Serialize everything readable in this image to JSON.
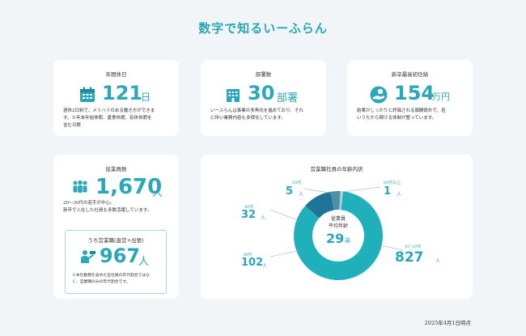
{
  "page": {
    "title": "数字で知るいーふらん",
    "date": "2025年4月1日時点"
  },
  "holidays": {
    "title": "年間休日",
    "value": "121",
    "unit": "日",
    "desc": [
      "週休2日制で、メリハリのある働き方ができま",
      "す。※年末年始休暇、夏季休暇、有休休暇を",
      "含む日数"
    ]
  },
  "departments": {
    "title": "部署数",
    "value": "30",
    "unit": "部署",
    "desc": [
      "いーふらんは事業の多角化を進めており、それ",
      "に伴い業務内容も多様化しています。"
    ]
  },
  "salary": {
    "title": "新卒最高初任給",
    "value": "154",
    "unit": "万円",
    "desc": [
      "結果がしっかりと評価される報酬設計で、若",
      "いうちから稼げる体制が整っています。"
    ]
  },
  "employees": {
    "title": "従業員数",
    "value": "1,670",
    "unit": "人",
    "desc": [
      "20～30代の若手が中心。",
      "新卒で入社した社員も多数活躍しています。"
    ],
    "sales": {
      "title": "うち営業職(直営+出張)",
      "value": "967",
      "unit": "人",
      "note": [
        "※本社勤務を含めた全社員の年代割合ではな",
        "く、営業職のみの年代割合です。"
      ]
    }
  },
  "ages": {
    "title": "営業職社員の年齢内訳",
    "center": {
      "line1": "従業員",
      "line2": "平均年齢",
      "value": "29",
      "unit": "歳"
    },
    "legend": {
      "a50": {
        "label": "50代",
        "value": "5",
        "unit": "人"
      },
      "a60": {
        "label": "60代以上",
        "value": "1",
        "unit": "人"
      },
      "a40": {
        "label": "40代",
        "value": "32",
        "unit": "人"
      },
      "a1020": {
        "label": "10･20代",
        "value": "827",
        "unit": "人"
      },
      "a30": {
        "label": "30代",
        "value": "102",
        "unit": "人"
      }
    }
  },
  "chart_data": {
    "type": "pie",
    "categories": [
      "10･20代",
      "30代",
      "40代",
      "50代",
      "60代以上"
    ],
    "values": [
      827,
      102,
      32,
      5,
      1
    ],
    "colors": [
      "#1fb0bb",
      "#1e7396",
      "#4d8fa6",
      "#8bb8c8",
      "#c7dde5"
    ],
    "title": "営業職社員の年齢内訳"
  }
}
